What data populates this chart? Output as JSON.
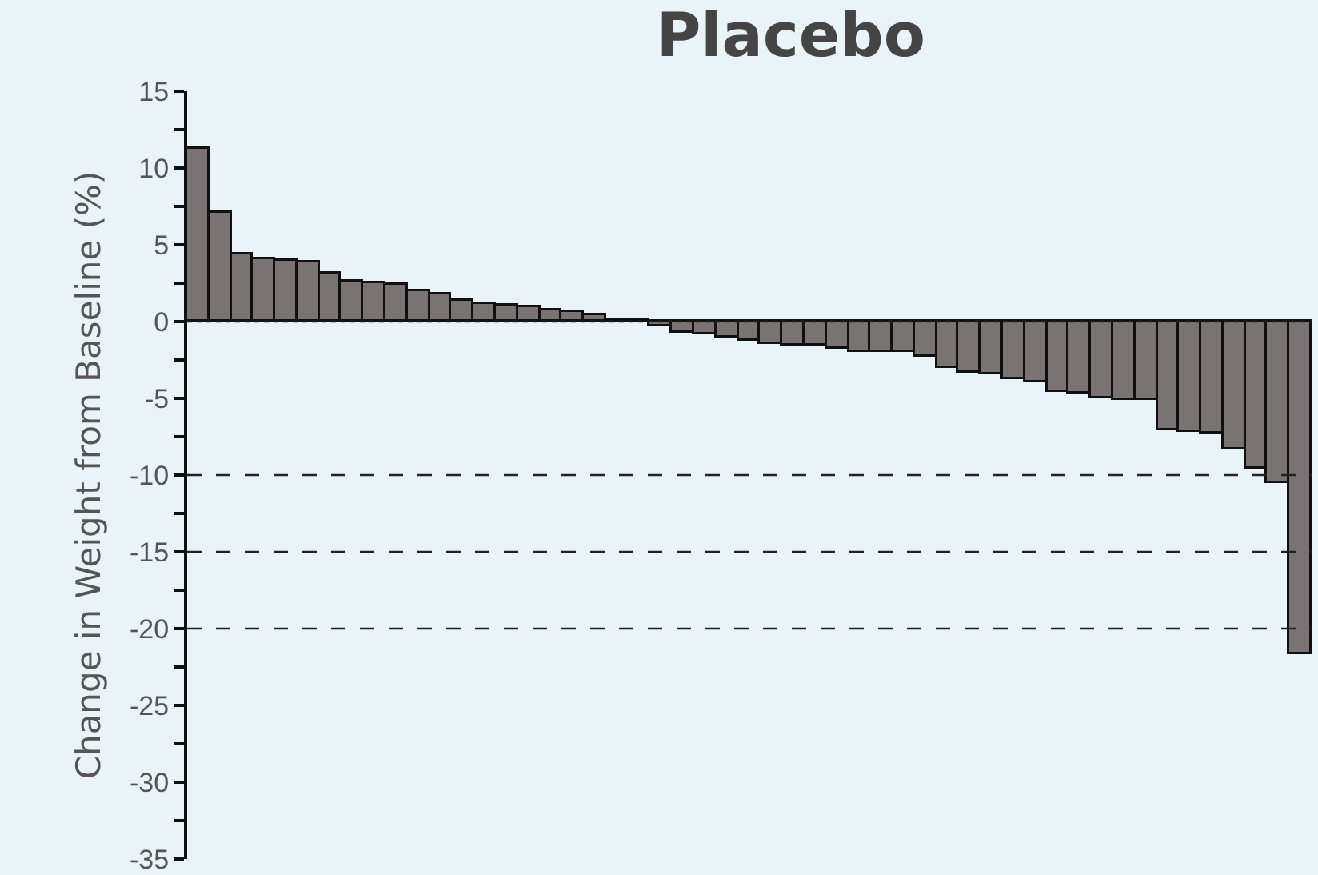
{
  "chart_data": {
    "type": "bar",
    "title": "Placebo",
    "ylabel": "Change in Weight from Baseline (%)",
    "categories": [
      null,
      null,
      null,
      null,
      null,
      null,
      null,
      null,
      null,
      null,
      null,
      null,
      null,
      null,
      null,
      null,
      null,
      null,
      null,
      null,
      null,
      null,
      null,
      null,
      null,
      null,
      null,
      null,
      null,
      null,
      null,
      null,
      null,
      null,
      null,
      null,
      null,
      null,
      null,
      null,
      null,
      null,
      null,
      null,
      null,
      null,
      null,
      null,
      null,
      null,
      null
    ],
    "values": [
      11.2,
      7.1,
      4.4,
      4.1,
      4.0,
      3.9,
      3.1,
      2.6,
      2.5,
      2.4,
      2.0,
      1.8,
      1.4,
      1.1,
      1.0,
      0.9,
      0.7,
      0.6,
      0.4,
      0.1,
      0.1,
      -0.3,
      -0.7,
      -0.8,
      -1.0,
      -1.2,
      -1.5,
      -1.6,
      -1.6,
      -1.8,
      -2.0,
      -2.0,
      -2.0,
      -2.3,
      -3.0,
      -3.3,
      -3.4,
      -3.7,
      -4.0,
      -4.6,
      -4.7,
      -5.0,
      -5.1,
      -5.1,
      -7.1,
      -7.2,
      -7.3,
      -8.3,
      -9.6,
      -10.5,
      -21.7
    ],
    "color": "#7a7373",
    "ylim": [
      -35,
      15
    ],
    "yticks": [
      -35,
      {
        "value": -32.5,
        "label": null
      },
      -30,
      {
        "value": -27.5,
        "label": null
      },
      -25,
      {
        "value": -22.5,
        "label": null
      },
      -20,
      {
        "value": -17.5,
        "label": null
      },
      -15,
      {
        "value": -12.5,
        "label": null
      },
      -10,
      {
        "value": -7.5,
        "label": null
      },
      -5,
      {
        "value": -2.5,
        "label": null
      },
      0,
      {
        "value": 2.5,
        "label": null
      },
      5,
      {
        "value": 7.5,
        "label": null
      },
      10,
      {
        "value": 12.5,
        "label": null
      },
      15
    ],
    "ref_lines": [
      {
        "axis": "y",
        "value": 0,
        "line_style": "dotted"
      },
      {
        "axis": "y",
        "value": -10,
        "line_style": "dashed"
      },
      {
        "axis": "y",
        "value": -15,
        "line_style": "dashed"
      },
      {
        "axis": "y",
        "value": -20,
        "line_style": "dashed"
      }
    ],
    "tick_labels": "y"
  }
}
